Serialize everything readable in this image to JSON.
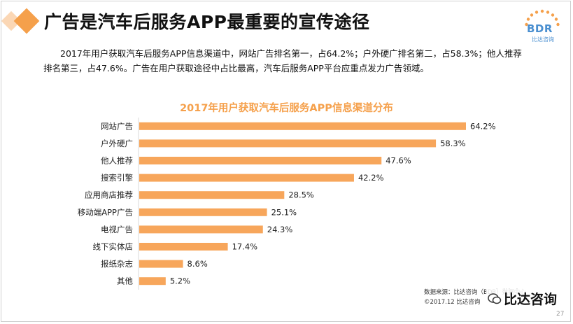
{
  "header": {
    "title": "广告是汽车后服务APP最重要的宣传途径",
    "logo_text": "BDR",
    "logo_sub": "比达咨询"
  },
  "summary": {
    "line1": "2017年用户获取汽车后服务APP信息渠道中，网站广告排名第一，占64.2%；户外硬广排名第二，占58.3%；他人推荐",
    "line2": "排名第三，占47.6%。广告在用户获取途径中占比最高，汽车后服务APP平台应重点发力广告领域。"
  },
  "chart_data": {
    "type": "bar",
    "orientation": "horizontal",
    "title": "2017年用户获取汽车后服务APP信息渠道分布",
    "categories": [
      "网站广告",
      "户外硬广",
      "他人推荐",
      "搜索引擎",
      "应用商店推荐",
      "移动端APP广告",
      "电视广告",
      "线下实体店",
      "报纸杂志",
      "其他"
    ],
    "values": [
      64.2,
      58.3,
      47.6,
      42.2,
      28.5,
      25.1,
      24.3,
      17.4,
      8.6,
      5.2
    ],
    "value_labels": [
      "64.2%",
      "58.3%",
      "47.6%",
      "42.2%",
      "28.5%",
      "25.1%",
      "24.3%",
      "17.4%",
      "8.6%",
      "5.2%"
    ],
    "xlim": [
      0,
      64.2
    ],
    "bar_color": "#f7a65b",
    "grid": false,
    "legend": "none"
  },
  "footer": {
    "source_line1": "数据来源：比达咨询（BDR）数据中心",
    "source_line2": "©2017.12 比达咨询",
    "brand_overlay": "比达咨询",
    "page_number": "27"
  },
  "colors": {
    "accent": "#f5a04b",
    "accent_light": "#fbd7b5",
    "logo_blue": "#4a8fd0"
  }
}
